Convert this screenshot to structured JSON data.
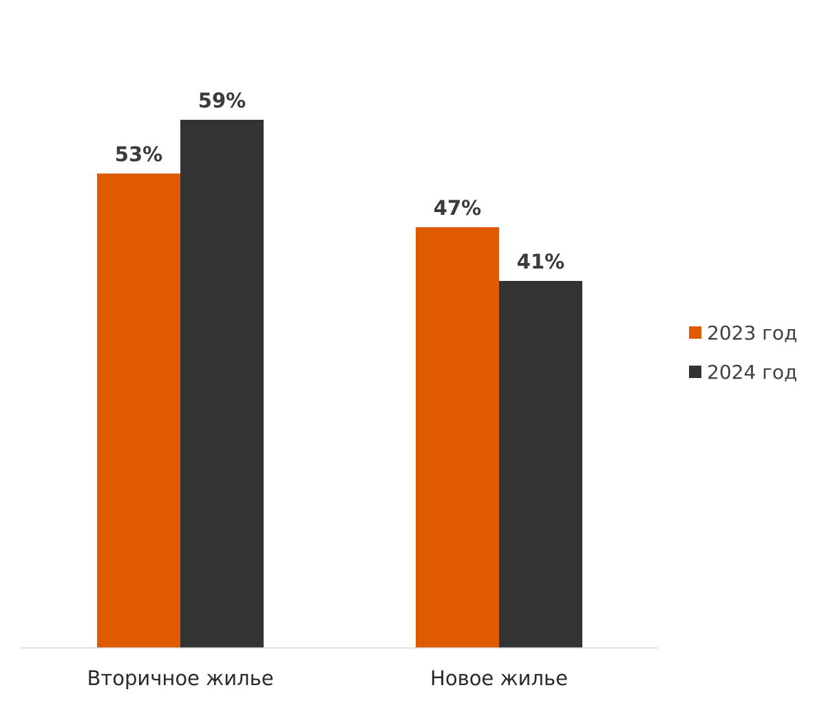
{
  "chart_data": {
    "type": "bar",
    "categories": [
      "Вторичное жилье",
      "Новое жилье"
    ],
    "series": [
      {
        "name": "2023 год",
        "values": [
          53,
          47
        ],
        "labels": [
          "53%",
          "47%"
        ],
        "color": "#e05a00"
      },
      {
        "name": "2024 год",
        "values": [
          59,
          41
        ],
        "labels": [
          "59%",
          "41%"
        ],
        "color": "#333333"
      }
    ],
    "ylim": [
      0,
      100
    ],
    "grid": false,
    "legend": "right"
  }
}
